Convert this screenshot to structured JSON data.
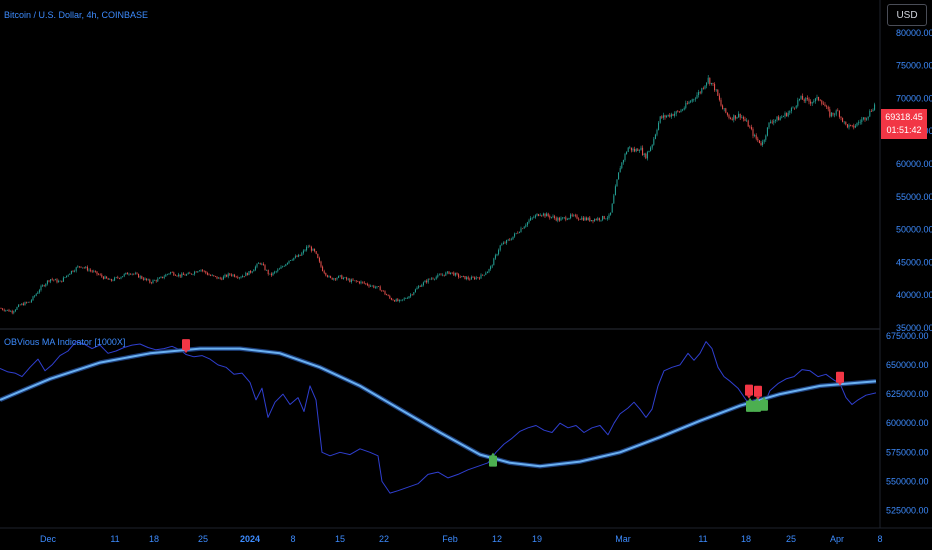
{
  "header": {
    "symbol_title": "Bitcoin / U.S. Dollar, 4h, COINBASE",
    "currency_button": "USD"
  },
  "price_tag": {
    "price": "69318.45",
    "countdown": "01:51:42",
    "color": "#f23645"
  },
  "indicator": {
    "title": "OBVious MA Indicator [1000X]"
  },
  "colors": {
    "background": "#000000",
    "up_candle": "#26a69a",
    "down_candle": "#ef5350",
    "obv_line": "#2f3fd0",
    "ma_line": "#6ab0f0",
    "axis_text": "#3d8bfd",
    "buy_signal": "#4caf50",
    "sell_signal": "#f23645"
  },
  "chart_data": [
    {
      "type": "candlestick",
      "title": "Bitcoin / U.S. Dollar, 4h, COINBASE",
      "ylim": [
        35000,
        85000
      ],
      "y_ticks": [
        "35000.00",
        "40000.00",
        "45000.00",
        "50000.00",
        "55000.00",
        "60000.00",
        "65000.00",
        "70000.00",
        "75000.00",
        "80000.00"
      ],
      "x_ticks": [
        {
          "label": "Dec",
          "bold": false
        },
        {
          "label": "11",
          "bold": false
        },
        {
          "label": "18",
          "bold": false
        },
        {
          "label": "25",
          "bold": false
        },
        {
          "label": "2024",
          "bold": true
        },
        {
          "label": "8",
          "bold": false
        },
        {
          "label": "15",
          "bold": false
        },
        {
          "label": "22",
          "bold": false
        },
        {
          "label": "Feb",
          "bold": false
        },
        {
          "label": "12",
          "bold": false
        },
        {
          "label": "19",
          "bold": false
        },
        {
          "label": "Mar",
          "bold": false
        },
        {
          "label": "11",
          "bold": false
        },
        {
          "label": "18",
          "bold": false
        },
        {
          "label": "25",
          "bold": false
        },
        {
          "label": "Apr",
          "bold": false
        },
        {
          "label": "8",
          "bold": false
        }
      ],
      "price_path": [
        [
          0,
          38000
        ],
        [
          12,
          37500
        ],
        [
          20,
          38500
        ],
        [
          30,
          39000
        ],
        [
          40,
          41000
        ],
        [
          50,
          42500
        ],
        [
          60,
          42000
        ],
        [
          70,
          43500
        ],
        [
          80,
          44500
        ],
        [
          90,
          43800
        ],
        [
          100,
          43000
        ],
        [
          110,
          42200
        ],
        [
          120,
          42800
        ],
        [
          130,
          43500
        ],
        [
          140,
          42800
        ],
        [
          150,
          42000
        ],
        [
          160,
          42500
        ],
        [
          170,
          43500
        ],
        [
          180,
          43000
        ],
        [
          190,
          43200
        ],
        [
          200,
          44000
        ],
        [
          210,
          43000
        ],
        [
          220,
          42500
        ],
        [
          230,
          43200
        ],
        [
          240,
          42800
        ],
        [
          250,
          43500
        ],
        [
          260,
          45000
        ],
        [
          270,
          43000
        ],
        [
          280,
          44000
        ],
        [
          290,
          45500
        ],
        [
          300,
          46000
        ],
        [
          308,
          47500
        ],
        [
          315,
          46500
        ],
        [
          322,
          44000
        ],
        [
          330,
          42500
        ],
        [
          340,
          42800
        ],
        [
          350,
          42200
        ],
        [
          360,
          42000
        ],
        [
          370,
          41500
        ],
        [
          380,
          41000
        ],
        [
          390,
          39500
        ],
        [
          400,
          39000
        ],
        [
          410,
          40000
        ],
        [
          420,
          41500
        ],
        [
          430,
          42500
        ],
        [
          440,
          43000
        ],
        [
          450,
          43500
        ],
        [
          460,
          42800
        ],
        [
          470,
          42500
        ],
        [
          480,
          42800
        ],
        [
          490,
          44000
        ],
        [
          500,
          47500
        ],
        [
          510,
          48500
        ],
        [
          520,
          50000
        ],
        [
          530,
          51500
        ],
        [
          540,
          52500
        ],
        [
          550,
          52000
        ],
        [
          560,
          51500
        ],
        [
          570,
          52000
        ],
        [
          580,
          51800
        ],
        [
          590,
          51500
        ],
        [
          600,
          51700
        ],
        [
          610,
          52000
        ],
        [
          615,
          56000
        ],
        [
          620,
          59500
        ],
        [
          628,
          62500
        ],
        [
          635,
          62000
        ],
        [
          640,
          62500
        ],
        [
          645,
          61000
        ],
        [
          652,
          63000
        ],
        [
          660,
          67000
        ],
        [
          670,
          67500
        ],
        [
          680,
          68000
        ],
        [
          690,
          69500
        ],
        [
          700,
          71000
        ],
        [
          708,
          73000
        ],
        [
          715,
          71500
        ],
        [
          722,
          68500
        ],
        [
          730,
          67000
        ],
        [
          740,
          67500
        ],
        [
          748,
          66000
        ],
        [
          755,
          64000
        ],
        [
          762,
          63000
        ],
        [
          770,
          66500
        ],
        [
          780,
          67000
        ],
        [
          790,
          68000
        ],
        [
          800,
          70000
        ],
        [
          810,
          69500
        ],
        [
          820,
          70000
        ],
        [
          830,
          67500
        ],
        [
          838,
          68000
        ],
        [
          845,
          66000
        ],
        [
          852,
          65500
        ],
        [
          860,
          66500
        ],
        [
          868,
          67500
        ],
        [
          876,
          69318
        ]
      ]
    },
    {
      "type": "line",
      "title": "OBVious MA Indicator [1000X]",
      "ylim": [
        510000,
        680000
      ],
      "y_ticks": [
        "525000.00",
        "550000.00",
        "575000.00",
        "600000.00",
        "625000.00",
        "650000.00",
        "675000.00"
      ],
      "series": [
        {
          "values": [
            [
              0,
              647000
            ],
            [
              8,
              644000
            ],
            [
              15,
              643000
            ],
            [
              22,
              640000
            ],
            [
              30,
              648000
            ],
            [
              38,
              655000
            ],
            [
              45,
              645000
            ],
            [
              52,
              650000
            ],
            [
              60,
              658000
            ],
            [
              68,
              662000
            ],
            [
              76,
              670000
            ],
            [
              84,
              668000
            ],
            [
              92,
              664000
            ],
            [
              100,
              667000
            ],
            [
              108,
              660000
            ],
            [
              116,
              662000
            ],
            [
              124,
              665000
            ],
            [
              132,
              667000
            ],
            [
              140,
              668000
            ],
            [
              148,
              665000
            ],
            [
              156,
              663000
            ],
            [
              164,
              664000
            ],
            [
              172,
              666000
            ],
            [
              180,
              663000
            ],
            [
              186,
              659000
            ],
            [
              194,
              657000
            ],
            [
              202,
              658000
            ],
            [
              210,
              655000
            ],
            [
              218,
              650000
            ],
            [
              226,
              648000
            ],
            [
              234,
              642000
            ],
            [
              242,
              643000
            ],
            [
              250,
              635000
            ],
            [
              256,
              620000
            ],
            [
              262,
              630000
            ],
            [
              268,
              605000
            ],
            [
              275,
              618000
            ],
            [
              283,
              625000
            ],
            [
              290,
              616000
            ],
            [
              298,
              622000
            ],
            [
              304,
              610000
            ],
            [
              310,
              632000
            ],
            [
              316,
              620000
            ],
            [
              322,
              575000
            ],
            [
              330,
              572000
            ],
            [
              340,
              575000
            ],
            [
              350,
              573000
            ],
            [
              360,
              578000
            ],
            [
              370,
              575000
            ],
            [
              378,
              572000
            ],
            [
              382,
              550000
            ],
            [
              390,
              540000
            ],
            [
              398,
              542000
            ],
            [
              408,
              545000
            ],
            [
              418,
              548000
            ],
            [
              428,
              556000
            ],
            [
              438,
              558000
            ],
            [
              448,
              553000
            ],
            [
              458,
              556000
            ],
            [
              468,
              560000
            ],
            [
              478,
              563000
            ],
            [
              488,
              566000
            ],
            [
              496,
              575000
            ],
            [
              504,
              582000
            ],
            [
              512,
              587000
            ],
            [
              520,
              593000
            ],
            [
              528,
              596000
            ],
            [
              536,
              598000
            ],
            [
              544,
              594000
            ],
            [
              552,
              592000
            ],
            [
              560,
              600000
            ],
            [
              568,
              596000
            ],
            [
              576,
              598000
            ],
            [
              584,
              592000
            ],
            [
              592,
              596000
            ],
            [
              600,
              598000
            ],
            [
              608,
              590000
            ],
            [
              614,
              600000
            ],
            [
              620,
              608000
            ],
            [
              628,
              613000
            ],
            [
              634,
              618000
            ],
            [
              640,
              612000
            ],
            [
              646,
              605000
            ],
            [
              652,
              612000
            ],
            [
              658,
              632000
            ],
            [
              664,
              645000
            ],
            [
              672,
              648000
            ],
            [
              680,
              650000
            ],
            [
              688,
              660000
            ],
            [
              694,
              654000
            ],
            [
              700,
              660000
            ],
            [
              706,
              670000
            ],
            [
              712,
              664000
            ],
            [
              718,
              648000
            ],
            [
              724,
              640000
            ],
            [
              730,
              636000
            ],
            [
              738,
              630000
            ],
            [
              746,
              620000
            ],
            [
              754,
              615000
            ],
            [
              762,
              612000
            ],
            [
              770,
              628000
            ],
            [
              778,
              634000
            ],
            [
              786,
              638000
            ],
            [
              794,
              640000
            ],
            [
              802,
              646000
            ],
            [
              810,
              645000
            ],
            [
              818,
              640000
            ],
            [
              826,
              642000
            ],
            [
              834,
              637000
            ],
            [
              840,
              634000
            ],
            [
              846,
              622000
            ],
            [
              852,
              616000
            ],
            [
              858,
              620000
            ],
            [
              866,
              624000
            ],
            [
              876,
              626000
            ]
          ]
        },
        {
          "values": [
            [
              0,
              620000
            ],
            [
              50,
              638000
            ],
            [
              100,
              652000
            ],
            [
              150,
              660000
            ],
            [
              200,
              664000
            ],
            [
              240,
              664000
            ],
            [
              280,
              660000
            ],
            [
              320,
              648000
            ],
            [
              360,
              632000
            ],
            [
              400,
              612000
            ],
            [
              440,
              592000
            ],
            [
              480,
              573000
            ],
            [
              510,
              566000
            ],
            [
              540,
              563000
            ],
            [
              580,
              567000
            ],
            [
              620,
              575000
            ],
            [
              660,
              588000
            ],
            [
              700,
              602000
            ],
            [
              740,
              615000
            ],
            [
              780,
              625000
            ],
            [
              820,
              632000
            ],
            [
              876,
              636000
            ]
          ]
        }
      ],
      "signals": [
        {
          "type": "sell",
          "x": 186,
          "value": 667000
        },
        {
          "type": "buy",
          "x": 493,
          "value": 567000
        },
        {
          "type": "sell",
          "x": 749,
          "value": 628000
        },
        {
          "type": "sell",
          "x": 758,
          "value": 627000
        },
        {
          "type": "buy",
          "x": 750,
          "value": 614000
        },
        {
          "type": "buy",
          "x": 757,
          "value": 614000
        },
        {
          "type": "buy",
          "x": 764,
          "value": 615000
        },
        {
          "type": "sell",
          "x": 840,
          "value": 639000
        }
      ]
    }
  ]
}
